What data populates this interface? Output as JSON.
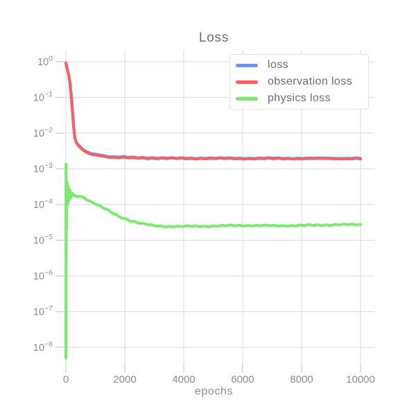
{
  "colors": {
    "grid": "#e0e0e0",
    "tick_mark": "#cfcfcf",
    "tick_label": "#8d8d8d",
    "title": "#6e6e6e",
    "legend_text": "#6b6b6b",
    "legend_border": "#e2e2e2",
    "background": "#ffffff"
  },
  "chart_data": {
    "type": "line",
    "title": "Loss",
    "xlabel": "epochs",
    "ylabel": "",
    "yscale": "log",
    "grid": true,
    "legend_position": "upper right",
    "xlim": [
      0,
      10000
    ],
    "ylim": [
      3e-09,
      2.2
    ],
    "x_ticks": [
      0,
      2000,
      4000,
      6000,
      8000,
      10000
    ],
    "y_tick_exponents": [
      0,
      -1,
      -2,
      -3,
      -4,
      -5,
      -6,
      -7,
      -8
    ],
    "series": [
      {
        "name": "loss",
        "color": "#6c95f2",
        "x": [
          0,
          50,
          117,
          187,
          280,
          350,
          470,
          590,
          820,
          1050,
          1520,
          2000,
          2500,
          3600,
          5000,
          6500,
          8000,
          10000
        ],
        "y": [
          0.93,
          0.6,
          0.34,
          0.1,
          0.0113,
          0.0058,
          0.0043,
          0.00345,
          0.00275,
          0.00252,
          0.00218,
          0.00212,
          0.00206,
          0.00199,
          0.00198,
          0.00197,
          0.00197,
          0.00197
        ]
      },
      {
        "name": "observation loss",
        "color": "#f56262",
        "x": [
          0,
          50,
          117,
          187,
          280,
          350,
          470,
          590,
          820,
          1050,
          1520,
          2000,
          2500,
          3600,
          5000,
          6500,
          8000,
          10000
        ],
        "y": [
          0.93,
          0.6,
          0.34,
          0.1,
          0.0111,
          0.0056,
          0.0041,
          0.0033,
          0.00262,
          0.00241,
          0.0021,
          0.00205,
          0.002,
          0.00195,
          0.00194,
          0.00193,
          0.00193,
          0.00193
        ]
      },
      {
        "name": "physics loss",
        "color": "#7ce96f",
        "x": [
          0,
          4,
          10,
          16,
          24,
          40,
          60,
          80,
          100,
          130,
          160,
          200,
          240,
          280,
          350,
          470,
          585,
          700,
          900,
          1170,
          1500,
          1760,
          2100,
          2460,
          2930,
          3400,
          4330,
          5000,
          6000,
          7140,
          8000,
          9000,
          10000
        ],
        "y": [
          5e-09,
          0.0012,
          3e-06,
          0.0006,
          2e-05,
          0.0004,
          0.0001,
          0.00032,
          0.00013,
          0.00026,
          0.00015,
          0.00021,
          0.00019,
          0.000185,
          0.00017,
          0.00017,
          0.00016,
          0.00014,
          0.000115,
          9e-05,
          6.3e-05,
          4.8e-05,
          3.8e-05,
          3.1e-05,
          2.6e-05,
          2.45e-05,
          2.45e-05,
          2.5e-05,
          2.6e-05,
          2.55e-05,
          2.6e-05,
          2.7e-05,
          2.75e-05
        ]
      }
    ]
  }
}
